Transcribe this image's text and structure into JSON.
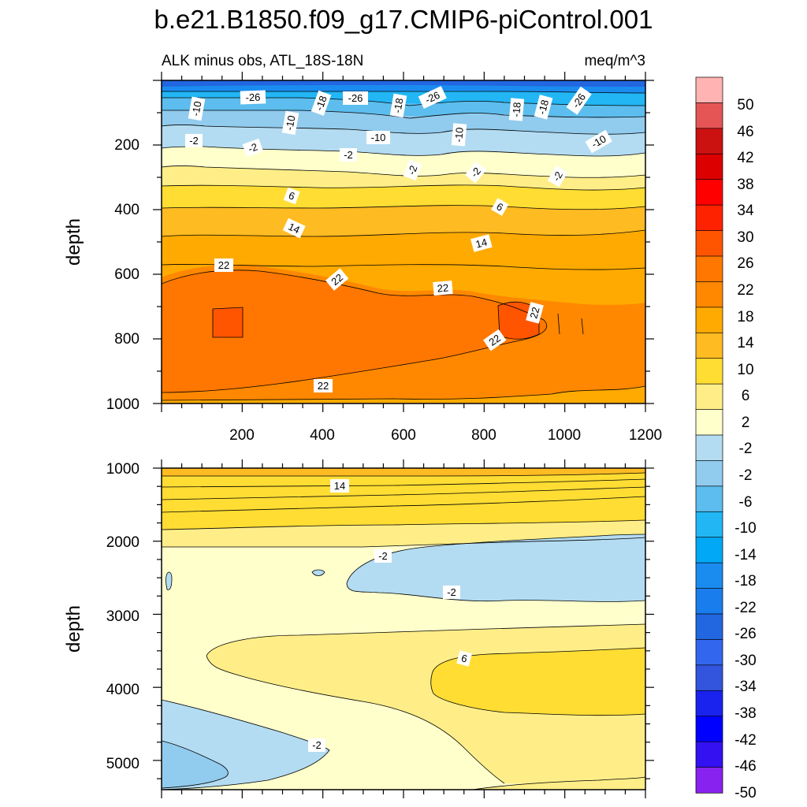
{
  "chart_data": {
    "type": "heatmap",
    "title": "b.e21.B1850.f09_g17.CMIP6-piControl.001",
    "subtitle_left": "ALK minus obs, ATL_18S-18N",
    "subtitle_right": "meq/m^3",
    "panels": [
      {
        "id": "upper",
        "ylabel": "depth",
        "xlim": [
          0,
          1200
        ],
        "ylim": [
          0,
          1000
        ],
        "x_ticks": [
          "200",
          "400",
          "600",
          "800",
          "1000",
          "1200"
        ],
        "y_ticks": [
          "200",
          "400",
          "600",
          "800",
          "1000"
        ],
        "contour_labels": [
          "-10",
          "-26",
          "-18",
          "-26",
          "-18",
          "-26",
          "-18",
          "-18",
          "-26",
          "-10",
          "-2",
          "-2",
          "-10",
          "-10",
          "-10",
          "-2",
          "-2",
          "-2",
          "-2",
          "6",
          "6",
          "14",
          "14",
          "22",
          "22",
          "22",
          "22",
          "22",
          "22"
        ]
      },
      {
        "id": "lower",
        "ylabel": "depth",
        "xlim": [
          0,
          1200
        ],
        "ylim": [
          1000,
          5400
        ],
        "y_ticks": [
          "1000",
          "2000",
          "3000",
          "4000",
          "5000"
        ],
        "contour_labels": [
          "14",
          "-2",
          "-2",
          "6",
          "-2"
        ]
      }
    ],
    "colorbar": {
      "labels": [
        "50",
        "46",
        "42",
        "38",
        "34",
        "30",
        "26",
        "22",
        "18",
        "14",
        "10",
        "6",
        "2",
        "-2",
        "-2",
        "-6",
        "-10",
        "-14",
        "-18",
        "-22",
        "-26",
        "-30",
        "-34",
        "-38",
        "-42",
        "-46",
        "-50"
      ],
      "colors": [
        "#ffb3b3",
        "#e55555",
        "#cc1111",
        "#dd0000",
        "#ff0000",
        "#ff2200",
        "#ff5500",
        "#ff7700",
        "#ff8800",
        "#ffaa00",
        "#ffbb22",
        "#ffdd33",
        "#ffee88",
        "#ffffcc",
        "#b3dcf2",
        "#91cbee",
        "#5cbdee",
        "#22b6f5",
        "#00a8f5",
        "#1a8cf0",
        "#1a7ded",
        "#2266e0",
        "#3366ee",
        "#3355dd",
        "#1a22ee",
        "#0000ff",
        "#3311f0",
        "#8822ee"
      ]
    }
  }
}
